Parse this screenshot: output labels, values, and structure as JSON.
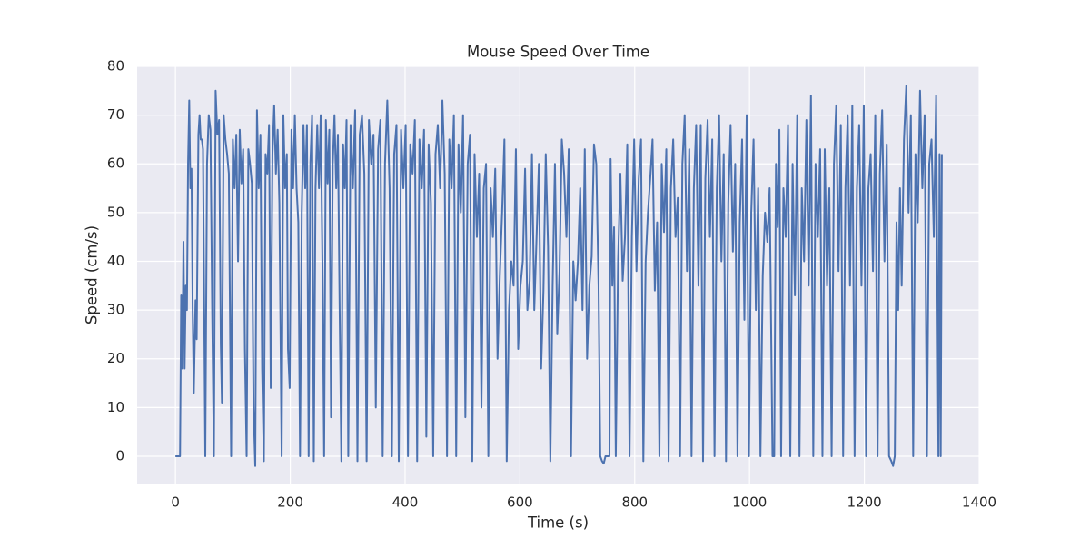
{
  "chart_data": {
    "type": "line",
    "title": "Mouse Speed Over Time",
    "x_label": "Time (s)",
    "y_label": "Speed (cm/s)",
    "xlim": [
      -66.7,
      1400
    ],
    "ylim": [
      -5.6,
      80
    ],
    "xticks": [
      0,
      200,
      400,
      600,
      800,
      1000,
      1200,
      1400
    ],
    "yticks": [
      0,
      10,
      20,
      30,
      40,
      50,
      60,
      70,
      80
    ],
    "grid": true,
    "series": [
      {
        "name": "Speed",
        "color": "#4c72b0",
        "x": [
          0,
          8,
          10,
          12,
          14,
          16,
          18,
          20,
          22,
          24,
          26,
          28,
          30,
          32,
          35,
          37,
          40,
          42,
          44,
          46,
          48,
          52,
          55,
          58,
          61,
          64,
          67,
          70,
          73,
          76,
          79,
          81,
          84,
          87,
          90,
          93,
          97,
          100,
          103,
          106,
          109,
          112,
          115,
          118,
          121,
          124,
          127,
          130,
          133,
          136,
          139,
          142,
          145,
          148,
          151,
          154,
          157,
          160,
          163,
          166,
          169,
          172,
          175,
          178,
          181,
          185,
          188,
          191,
          194,
          196,
          199,
          202,
          205,
          208,
          211,
          214,
          217,
          220,
          223,
          226,
          229,
          232,
          235,
          238,
          241,
          244,
          247,
          250,
          253,
          256,
          259,
          262,
          265,
          268,
          271,
          274,
          277,
          280,
          283,
          286,
          289,
          292,
          295,
          298,
          301,
          305,
          309,
          313,
          317,
          321,
          325,
          329,
          333,
          337,
          341,
          345,
          349,
          353,
          357,
          361,
          365,
          369,
          373,
          377,
          381,
          385,
          389,
          393,
          397,
          401,
          405,
          409,
          413,
          417,
          421,
          425,
          429,
          433,
          437,
          441,
          445,
          449,
          453,
          457,
          461,
          465,
          469,
          473,
          477,
          481,
          485,
          489,
          493,
          497,
          501,
          505,
          509,
          513,
          517,
          521,
          525,
          529,
          533,
          537,
          541,
          545,
          549,
          553,
          557,
          561,
          565,
          569,
          573,
          577,
          581,
          585,
          589,
          593,
          597,
          601,
          605,
          609,
          613,
          617,
          621,
          625,
          629,
          633,
          637,
          641,
          645,
          649,
          653,
          657,
          661,
          665,
          669,
          673,
          677,
          681,
          685,
          689,
          693,
          697,
          701,
          705,
          709,
          713,
          717,
          721,
          725,
          729,
          733,
          737,
          740,
          743,
          746,
          749,
          753,
          756,
          758,
          761,
          764,
          767,
          771,
          775,
          779,
          783,
          787,
          791,
          795,
          799,
          803,
          807,
          811,
          815,
          819,
          823,
          827,
          831,
          835,
          839,
          843,
          847,
          851,
          855,
          859,
          863,
          867,
          871,
          875,
          879,
          883,
          887,
          891,
          895,
          899,
          903,
          907,
          911,
          915,
          919,
          923,
          927,
          931,
          935,
          939,
          943,
          947,
          951,
          955,
          959,
          963,
          967,
          971,
          975,
          979,
          983,
          987,
          991,
          995,
          999,
          1003,
          1007,
          1011,
          1015,
          1019,
          1023,
          1027,
          1031,
          1035,
          1040,
          1043,
          1046,
          1049,
          1052,
          1055,
          1059,
          1063,
          1067,
          1071,
          1075,
          1079,
          1083,
          1087,
          1091,
          1095,
          1099,
          1103,
          1107,
          1111,
          1115,
          1119,
          1123,
          1127,
          1131,
          1135,
          1139,
          1143,
          1147,
          1151,
          1155,
          1159,
          1163,
          1167,
          1171,
          1175,
          1179,
          1183,
          1187,
          1191,
          1195,
          1199,
          1203,
          1207,
          1211,
          1215,
          1219,
          1223,
          1227,
          1231,
          1235,
          1239,
          1243,
          1247,
          1250,
          1253,
          1256,
          1259,
          1262,
          1265,
          1269,
          1273,
          1277,
          1281,
          1285,
          1289,
          1293,
          1297,
          1301,
          1305,
          1309,
          1313,
          1317,
          1321,
          1325,
          1329,
          1331,
          1333,
          1335
        ],
        "values": [
          0,
          0,
          33,
          18,
          44,
          18,
          35,
          30,
          60,
          73,
          55,
          59,
          30,
          13,
          32,
          24,
          66,
          70,
          65,
          65,
          63,
          0,
          60,
          70,
          67,
          30,
          0,
          75,
          66,
          69,
          23,
          11,
          70,
          65,
          62,
          58,
          0,
          65,
          55,
          66,
          40,
          67,
          56,
          63,
          22,
          0,
          63,
          60,
          56,
          10,
          -2,
          71,
          55,
          66,
          18,
          -1,
          62,
          58,
          68,
          14,
          62,
          72,
          58,
          67,
          52,
          0,
          70,
          55,
          62,
          22,
          14,
          67,
          55,
          70,
          55,
          48,
          0,
          50,
          68,
          55,
          68,
          0,
          60,
          70,
          -1,
          55,
          68,
          55,
          70,
          40,
          0,
          69,
          56,
          67,
          8,
          60,
          70,
          55,
          66,
          30,
          -1,
          64,
          55,
          69,
          0,
          68,
          55,
          71,
          -1,
          66,
          70,
          58,
          -1,
          69,
          60,
          66,
          10,
          63,
          69,
          0,
          60,
          73,
          55,
          0,
          62,
          68,
          -1,
          67,
          55,
          68,
          0,
          64,
          58,
          69,
          -1,
          65,
          55,
          67,
          4,
          64,
          52,
          0,
          62,
          68,
          55,
          73,
          58,
          0,
          65,
          55,
          70,
          0,
          64,
          50,
          70,
          8,
          60,
          66,
          -1,
          62,
          45,
          58,
          10,
          55,
          60,
          0,
          55,
          45,
          59,
          20,
          37,
          50,
          65,
          -1,
          30,
          40,
          35,
          63,
          22,
          35,
          40,
          59,
          30,
          36,
          62,
          30,
          45,
          60,
          18,
          34,
          62,
          43,
          -1,
          35,
          60,
          25,
          38,
          65,
          58,
          45,
          63,
          0,
          40,
          32,
          40,
          55,
          30,
          63,
          20,
          35,
          41,
          64,
          60,
          35,
          0,
          -1,
          -1.5,
          0,
          0,
          0,
          61,
          35,
          47,
          0,
          40,
          58,
          36,
          45,
          64,
          0,
          45,
          65,
          38,
          57,
          65,
          -1,
          40,
          50,
          57,
          65,
          34,
          48,
          0,
          60,
          46,
          63,
          -1,
          55,
          65,
          45,
          53,
          0,
          60,
          70,
          38,
          63,
          0,
          55,
          68,
          35,
          68,
          -1,
          57,
          69,
          45,
          65,
          0,
          55,
          70,
          40,
          62,
          -1,
          52,
          68,
          42,
          60,
          0,
          48,
          65,
          28,
          70,
          0,
          50,
          65,
          30,
          55,
          0,
          37,
          50,
          44,
          55,
          0,
          0,
          60,
          47,
          67,
          0,
          55,
          45,
          68,
          0,
          60,
          33,
          70,
          0,
          55,
          40,
          69,
          35,
          74,
          0,
          60,
          45,
          63,
          0,
          63,
          35,
          55,
          0,
          60,
          72,
          38,
          68,
          0,
          55,
          70,
          35,
          72,
          0,
          55,
          68,
          35,
          72,
          0,
          55,
          62,
          38,
          70,
          0,
          58,
          71,
          40,
          64,
          0,
          -1,
          -2,
          0,
          48,
          30,
          55,
          35,
          65,
          76,
          50,
          70,
          0,
          62,
          48,
          75,
          55,
          70,
          0,
          60,
          65,
          45,
          74,
          0,
          62,
          0,
          62
        ]
      }
    ]
  }
}
